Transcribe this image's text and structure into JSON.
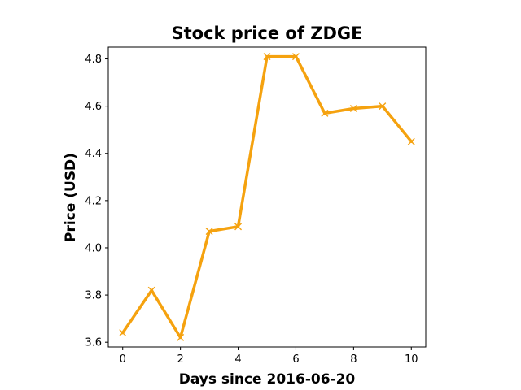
{
  "chart_data": {
    "type": "line",
    "title": "Stock price of ZDGE",
    "xlabel": "Days since 2016-06-20",
    "ylabel": "Price (USD)",
    "x": [
      0,
      1,
      2,
      3,
      4,
      5,
      6,
      7,
      8,
      9,
      10
    ],
    "series": [
      {
        "values": [
          3.64,
          3.82,
          3.62,
          4.07,
          4.09,
          4.81,
          4.81,
          4.57,
          4.59,
          4.6,
          4.45
        ],
        "color": "#f5a20f",
        "marker": "x"
      }
    ],
    "xlim": [
      -0.5,
      10.5
    ],
    "ylim": [
      3.58,
      4.85
    ],
    "xticks": [
      0,
      2,
      4,
      6,
      8,
      10
    ],
    "yticks": [
      3.6,
      3.8,
      4.0,
      4.2,
      4.4,
      4.6,
      4.8
    ],
    "grid": false,
    "legend": "none"
  }
}
